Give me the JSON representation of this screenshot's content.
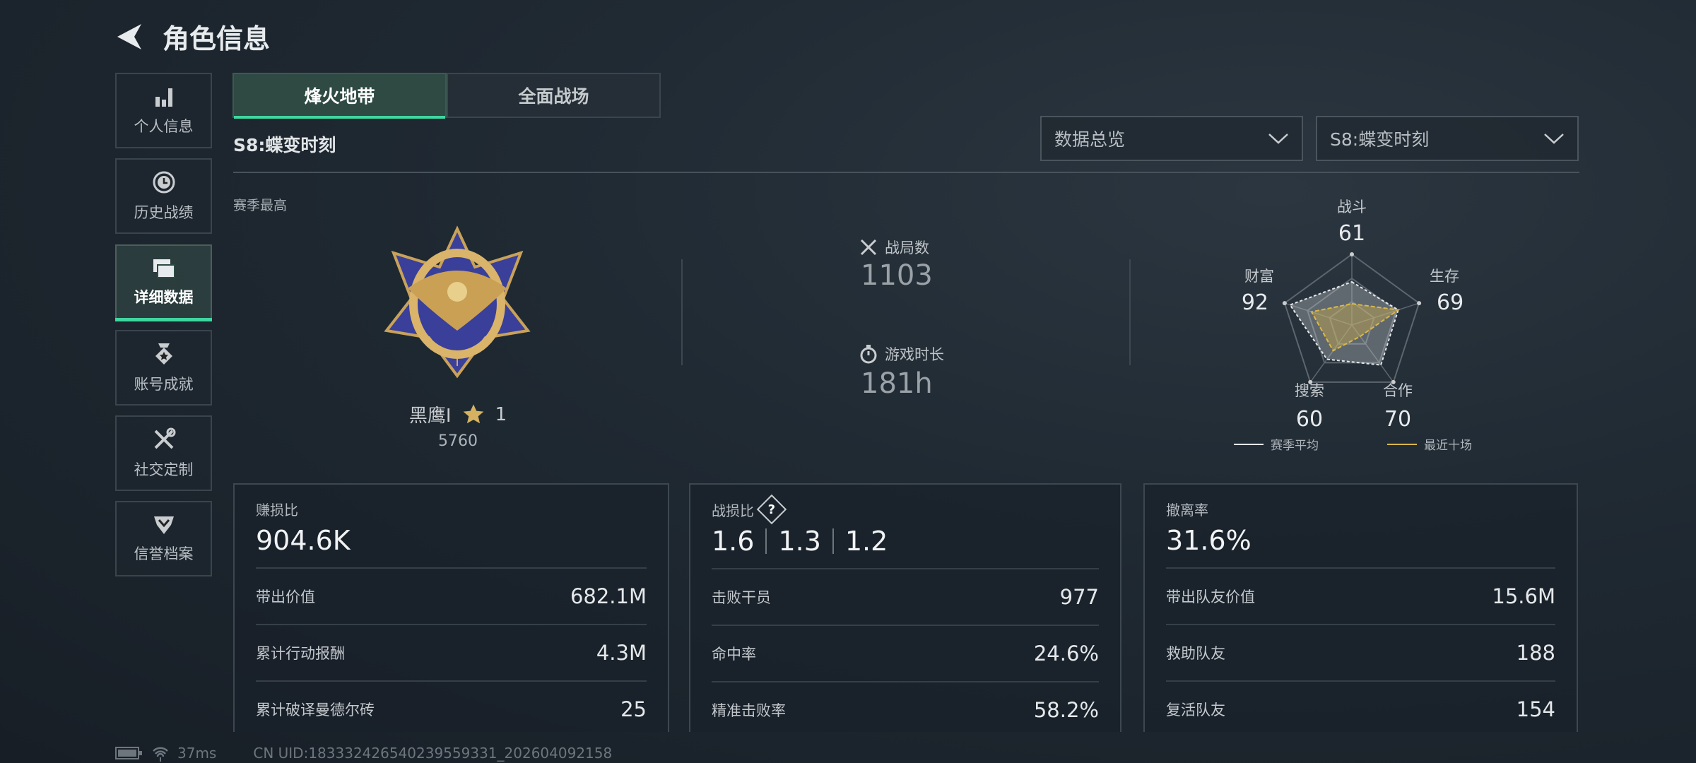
{
  "header": {
    "title": "角色信息",
    "back_icon": "back-arrow-icon"
  },
  "sidebar": {
    "items": [
      {
        "label": "个人信息",
        "icon": "bar-chart-icon"
      },
      {
        "label": "历史战绩",
        "icon": "history-clock-icon"
      },
      {
        "label": "详细数据",
        "icon": "folder-icon",
        "active": true
      },
      {
        "label": "账号成就",
        "icon": "achievement-medal-icon"
      },
      {
        "label": "社交定制",
        "icon": "tools-icon"
      },
      {
        "label": "信誉档案",
        "icon": "credit-shield-icon"
      }
    ]
  },
  "tabs": [
    {
      "label": "烽火地带",
      "active": true
    },
    {
      "label": "全面战场"
    }
  ],
  "season_title": "S8:蝶变时刻",
  "filters": {
    "view": "数据总览",
    "season": "S8:蝶变时刻"
  },
  "rank": {
    "label": "赛季最高",
    "name": "黑鹰I",
    "stars": "1",
    "score": "5760"
  },
  "summary": {
    "matches_label": "战局数",
    "matches": "1103",
    "time_label": "游戏时长",
    "time": "181h"
  },
  "radar": {
    "axes": [
      "战斗",
      "生存",
      "合作",
      "搜索",
      "财富"
    ],
    "season_avg": [
      61,
      69,
      70,
      60,
      92
    ],
    "recent_ten": [
      30,
      69,
      20,
      45,
      60
    ],
    "legend": [
      "赛季平均",
      "最近十场"
    ],
    "colors": {
      "season_avg": "#e6e8ea",
      "recent_ten": "#d9b84a"
    }
  },
  "cards": [
    {
      "title": "赚损比",
      "value": "904.6K",
      "rows": [
        {
          "label": "带出价值",
          "value": "682.1M"
        },
        {
          "label": "累计行动报酬",
          "value": "4.3M"
        },
        {
          "label": "累计破译曼德尔砖",
          "value": "25"
        }
      ]
    },
    {
      "title": "战损比",
      "values": [
        "1.6",
        "1.3",
        "1.2"
      ],
      "help": "?",
      "rows": [
        {
          "label": "击败干员",
          "value": "977"
        },
        {
          "label": "命中率",
          "value": "24.6%"
        },
        {
          "label": "精准击败率",
          "value": "58.2%"
        }
      ]
    },
    {
      "title": "撤离率",
      "value": "31.6%",
      "rows": [
        {
          "label": "带出队友价值",
          "value": "15.6M"
        },
        {
          "label": "救助队友",
          "value": "188"
        },
        {
          "label": "复活队友",
          "value": "154"
        }
      ]
    }
  ],
  "footer": {
    "ping": "37ms",
    "uid": "CN UID:18333242654023955933​1_202604092158"
  },
  "accent": "#3fd6a0"
}
